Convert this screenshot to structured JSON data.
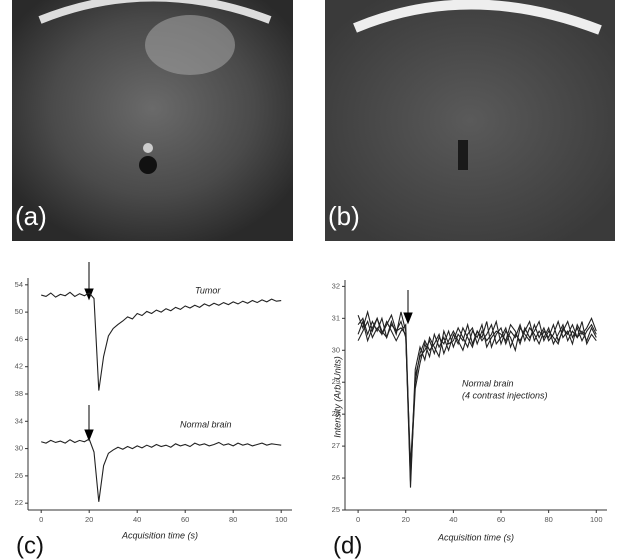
{
  "images": [
    {
      "label": "(a)"
    },
    {
      "label": "(b)"
    }
  ],
  "chart_data": [
    {
      "type": "line",
      "panel_label": "(c)",
      "x_label": "Acquisition time (s)",
      "x": [
        0,
        2,
        4,
        6,
        8,
        10,
        12,
        14,
        16,
        18,
        20,
        22,
        24,
        26,
        28,
        30,
        32,
        34,
        36,
        38,
        40,
        42,
        44,
        46,
        48,
        50,
        52,
        54,
        56,
        58,
        60,
        62,
        64,
        66,
        68,
        70,
        72,
        74,
        76,
        78,
        80,
        82,
        84,
        86,
        88,
        90,
        92,
        94,
        96,
        98,
        100
      ],
      "xlim": [
        -5.5,
        104.5
      ],
      "xticks": [
        0,
        20,
        40,
        60,
        80,
        100
      ],
      "ylim": [
        21,
        55
      ],
      "yticks": [
        22,
        26,
        30,
        34,
        38,
        42,
        46,
        50,
        54
      ],
      "series": [
        {
          "name": "Tumor",
          "color": "#222222",
          "values": [
            52.5,
            52.3,
            52.8,
            52.2,
            52.6,
            52.4,
            52.9,
            52.3,
            52.7,
            52.4,
            52.8,
            52.0,
            38.5,
            43.5,
            46.5,
            47.6,
            48.2,
            48.7,
            49.3,
            49.0,
            49.8,
            49.5,
            50.1,
            49.8,
            50.3,
            50.0,
            50.5,
            50.2,
            50.7,
            50.4,
            50.9,
            50.6,
            51.0,
            50.7,
            51.2,
            50.9,
            51.3,
            51.0,
            51.4,
            51.1,
            51.5,
            51.2,
            51.6,
            51.3,
            51.7,
            51.4,
            51.8,
            51.5,
            51.9,
            51.6,
            51.7
          ]
        },
        {
          "name": "Normal brain",
          "color": "#222222",
          "values": [
            31.0,
            30.8,
            31.2,
            30.9,
            31.1,
            30.8,
            31.3,
            30.9,
            31.2,
            31.0,
            31.4,
            29.5,
            22.2,
            27.5,
            29.3,
            29.8,
            30.2,
            29.9,
            30.3,
            30.0,
            30.4,
            30.1,
            30.5,
            30.2,
            30.6,
            30.3,
            30.5,
            30.2,
            30.7,
            30.4,
            30.6,
            30.3,
            30.8,
            30.5,
            30.7,
            30.4,
            30.6,
            30.9,
            30.5,
            30.7,
            30.4,
            30.8,
            30.5,
            30.7,
            30.4,
            30.6,
            30.8,
            30.5,
            30.7,
            30.6,
            30.5
          ]
        }
      ]
    },
    {
      "type": "line",
      "panel_label": "(d)",
      "x_label": "Acquisition time (s)",
      "y_label": "Intensity (Arb. Units)",
      "annotations": [
        "Normal brain",
        "(4 contrast injections)"
      ],
      "x": [
        0,
        2,
        4,
        6,
        8,
        10,
        12,
        14,
        16,
        18,
        20,
        22,
        24,
        26,
        28,
        30,
        32,
        34,
        36,
        38,
        40,
        42,
        44,
        46,
        48,
        50,
        52,
        54,
        56,
        58,
        60,
        62,
        64,
        66,
        68,
        70,
        72,
        74,
        76,
        78,
        80,
        82,
        84,
        86,
        88,
        90,
        92,
        94,
        96,
        98,
        100
      ],
      "xlim": [
        -5.5,
        104.5
      ],
      "xticks": [
        0,
        20,
        40,
        60,
        80,
        100
      ],
      "ylim": [
        25,
        32.2
      ],
      "yticks": [
        25,
        26,
        27,
        28,
        29,
        30,
        31,
        32
      ],
      "series": [
        {
          "color": "#222222",
          "values": [
            30.8,
            31.0,
            30.5,
            30.9,
            30.6,
            31.0,
            30.4,
            30.8,
            30.6,
            30.7,
            30.5,
            25.7,
            29.2,
            29.8,
            30.0,
            30.3,
            29.9,
            30.4,
            30.2,
            30.6,
            30.1,
            30.5,
            30.3,
            30.8,
            30.2,
            30.6,
            30.4,
            30.9,
            30.1,
            30.5,
            30.7,
            30.2,
            30.6,
            30.4,
            30.8,
            30.3,
            30.7,
            30.5,
            30.2,
            30.6,
            30.4,
            30.8,
            30.3,
            30.6,
            30.9,
            30.4,
            30.7,
            30.3,
            30.6,
            30.8,
            30.5
          ]
        },
        {
          "color": "#222222",
          "values": [
            30.3,
            30.6,
            30.9,
            30.4,
            30.7,
            30.5,
            30.9,
            30.6,
            30.3,
            30.6,
            30.8,
            26.1,
            28.8,
            29.6,
            30.2,
            29.8,
            30.5,
            30.1,
            30.4,
            30.0,
            30.5,
            30.2,
            30.7,
            30.4,
            30.1,
            30.6,
            30.3,
            30.5,
            30.8,
            30.2,
            30.4,
            30.7,
            30.1,
            30.5,
            30.3,
            30.6,
            30.9,
            30.3,
            30.6,
            30.4,
            30.7,
            30.2,
            30.5,
            30.8,
            30.3,
            30.6,
            30.4,
            30.9,
            30.2,
            30.5,
            30.3
          ]
        },
        {
          "color": "#222222",
          "values": [
            31.1,
            30.7,
            31.2,
            30.6,
            31.0,
            30.5,
            30.8,
            31.1,
            30.6,
            30.9,
            30.4,
            26.4,
            29.0,
            29.9,
            30.3,
            30.0,
            30.2,
            30.5,
            29.9,
            30.3,
            30.6,
            30.3,
            30.0,
            30.5,
            30.7,
            30.2,
            30.6,
            30.3,
            30.5,
            30.9,
            30.2,
            30.6,
            30.4,
            30.0,
            30.7,
            30.5,
            30.3,
            30.8,
            30.4,
            30.7,
            30.3,
            30.5,
            30.9,
            30.4,
            30.6,
            30.2,
            30.8,
            30.5,
            30.7,
            31.0,
            30.6
          ]
        },
        {
          "color": "#222222",
          "values": [
            30.5,
            30.9,
            30.3,
            30.7,
            31.0,
            30.6,
            30.4,
            30.9,
            30.5,
            31.2,
            30.6,
            25.9,
            29.4,
            30.1,
            29.7,
            30.4,
            30.1,
            29.8,
            30.6,
            30.2,
            30.3,
            30.7,
            30.4,
            30.1,
            30.6,
            30.4,
            30.8,
            30.1,
            30.4,
            30.6,
            30.5,
            30.3,
            30.8,
            30.6,
            30.2,
            30.7,
            30.4,
            30.6,
            30.9,
            30.3,
            30.6,
            30.4,
            30.2,
            30.7,
            30.5,
            30.8,
            30.4,
            30.6,
            30.3,
            30.7,
            30.4
          ]
        }
      ]
    }
  ]
}
